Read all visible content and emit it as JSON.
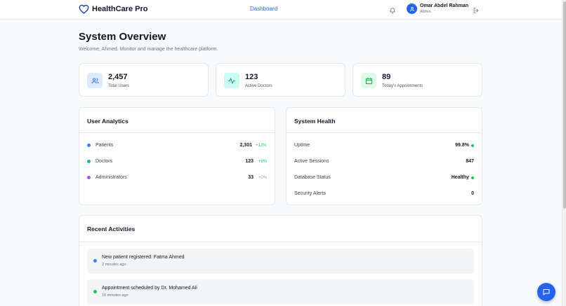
{
  "header": {
    "brand": "HealthCare Pro",
    "nav_dashboard": "Dashboard",
    "user_name": "Omar Abdel Rahman",
    "user_role": "Admin"
  },
  "page": {
    "title": "System Overview",
    "subtitle": "Welcome, Ahmed. Monitor and manage the healthcare platform."
  },
  "stats": [
    {
      "value": "2,457",
      "label": "Total Users",
      "icon": "users-icon",
      "bg": "#dbeafe",
      "color": "#2563eb"
    },
    {
      "value": "123",
      "label": "Active Doctors",
      "icon": "activity-icon",
      "bg": "#ccfbf1",
      "color": "#0d9488"
    },
    {
      "value": "89",
      "label": "Today's Appointments",
      "icon": "calendar-icon",
      "bg": "#dcfce7",
      "color": "#16a34a"
    }
  ],
  "user_analytics": {
    "title": "User Analytics",
    "rows": [
      {
        "label": "Patients",
        "value": "2,301",
        "change": "+12%",
        "dot": "#3b82f6"
      },
      {
        "label": "Doctors",
        "value": "123",
        "change": "+8%",
        "dot": "#14b8a6"
      },
      {
        "label": "Administrators",
        "value": "33",
        "change": "+0%",
        "dot": "#a855f7"
      }
    ]
  },
  "system_health": {
    "title": "System Health",
    "rows": [
      {
        "label": "Uptime",
        "value": "99.8%",
        "status_dot": "#22c55e"
      },
      {
        "label": "Active Sessions",
        "value": "847"
      },
      {
        "label": "Database Status",
        "value": "Healthy",
        "status_dot": "#22c55e"
      },
      {
        "label": "Security Alerts",
        "value": "0"
      }
    ]
  },
  "recent_activities": {
    "title": "Recent Activities",
    "items": [
      {
        "text": "New patient registered: Fatma Ahmed",
        "time": "2 minutes ago",
        "dot": "#3b82f6"
      },
      {
        "text": "Appointment scheduled by Dr. Mohamed Ali",
        "time": "15 minutes ago",
        "dot": "#22c55e"
      }
    ]
  },
  "colors": {
    "accent": "#2563eb",
    "success": "#22c55e"
  }
}
